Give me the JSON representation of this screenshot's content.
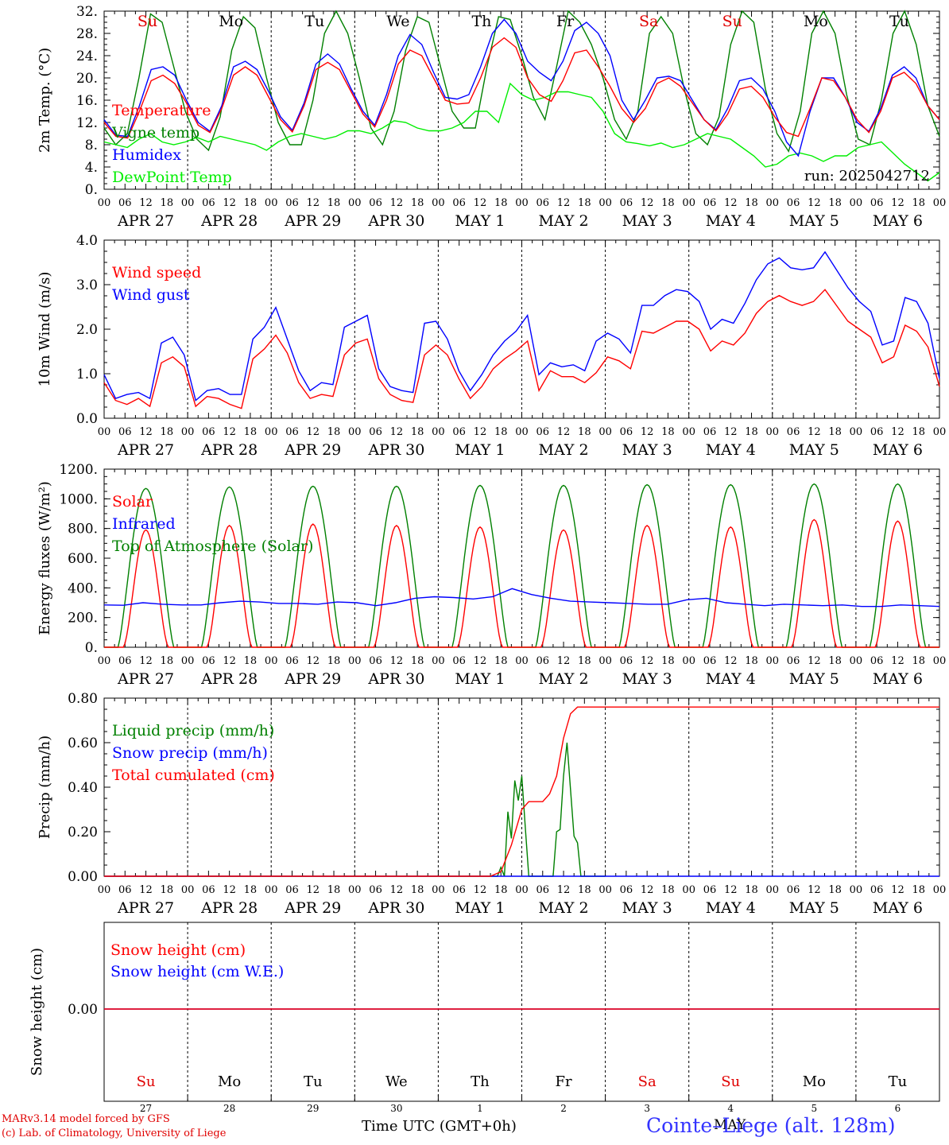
{
  "run_label": "run: 2025042712",
  "day_names": [
    "Su",
    "Mo",
    "Tu",
    "We",
    "Th",
    "Fr",
    "Sa",
    "Su",
    "Mo",
    "Tu"
  ],
  "day_name_colors": [
    "#e00000",
    "#000000",
    "#000000",
    "#000000",
    "#000000",
    "#000000",
    "#e00000",
    "#e00000",
    "#000000",
    "#000000"
  ],
  "date_labels": [
    "APR 27",
    "APR 28",
    "APR 29",
    "APR 30",
    "MAY  1",
    "MAY  2",
    "MAY  3",
    "MAY  4",
    "MAY  5",
    "MAY  6"
  ],
  "hour_labels": [
    "00",
    "06",
    "12",
    "18"
  ],
  "final_hour_label": "00",
  "day_numbers": [
    "27",
    "28",
    "29",
    "30",
    "1",
    "2",
    "3",
    "4",
    "5",
    "6"
  ],
  "month_label": "MAY",
  "xlabel": "Time UTC (GMT+0h)",
  "credit_lines": [
    "MARv3.14 model forced by GFS",
    "(c) Lab. of Climatology, University of Liege"
  ],
  "station": "Cointe–Liege (alt. 128m)",
  "colors": {
    "red": "#ff0000",
    "blue": "#0000ff",
    "dkgreen": "#008000",
    "ltgreen": "#00ee00"
  },
  "chart_data": [
    {
      "type": "line",
      "ylabel": "2m Temp. (°C)",
      "ylim": [
        0,
        32
      ],
      "yticks": [
        "0.",
        "4.",
        "8.",
        "12.",
        "16.",
        "20.",
        "24.",
        "28.",
        "32."
      ],
      "series": [
        {
          "name": "Temperature",
          "color": "#ff0000",
          "values": [
            12,
            9.5,
            9.2,
            14,
            19.5,
            20.5,
            19,
            15.5,
            11.5,
            10.2,
            14.5,
            20.5,
            22,
            20.5,
            16.5,
            12.5,
            10.3,
            15,
            21.5,
            22.8,
            21.5,
            17.5,
            13.5,
            11.2,
            16,
            22.5,
            25,
            24,
            20,
            16,
            15.3,
            15.5,
            20,
            25.5,
            27.2,
            25.5,
            20,
            17,
            15.8,
            19.5,
            24.5,
            25,
            22,
            18.5,
            14.5,
            12,
            14.5,
            19,
            20,
            18.5,
            15.5,
            12.5,
            10.5,
            13.5,
            18,
            18.5,
            16.5,
            13,
            10.2,
            9.5,
            14.5,
            20,
            19.5,
            16.5,
            12.5,
            10.2,
            14,
            20,
            21,
            19,
            15,
            12.5
          ]
        },
        {
          "name": "Vigne temp",
          "color": "#008000",
          "values": [
            11,
            8,
            10,
            20,
            31.5,
            30,
            22,
            14,
            9,
            7,
            13,
            25,
            31,
            29,
            20,
            12,
            8,
            8,
            16,
            28,
            32,
            28,
            20,
            11,
            8,
            14,
            25,
            31,
            30,
            22,
            14,
            11,
            11,
            22,
            31,
            30.5,
            24,
            16.5,
            12.5,
            22,
            32,
            30,
            26,
            20,
            12.5,
            9,
            14,
            28,
            31,
            28,
            18,
            10,
            8,
            13,
            26,
            32,
            30,
            18,
            10,
            6.8,
            14,
            28,
            32,
            28,
            17,
            9,
            8,
            16,
            28,
            32,
            26,
            15,
            9.5
          ]
        },
        {
          "name": "Humidex",
          "color": "#0000ff",
          "values": [
            12.5,
            9.7,
            9.5,
            15,
            21.5,
            22,
            20.5,
            16,
            12,
            10.4,
            15,
            22,
            23,
            21.5,
            17.5,
            13,
            10.6,
            15.5,
            22.5,
            24.3,
            22.5,
            18,
            14,
            11.5,
            17,
            24,
            27.8,
            26,
            21,
            16.5,
            16.2,
            17,
            22,
            28,
            30.5,
            28,
            23,
            21,
            19.5,
            23,
            28.5,
            30,
            28,
            24,
            16,
            12.5,
            16,
            20,
            20.3,
            19.5,
            16,
            12.5,
            10.7,
            14.5,
            19.5,
            20,
            18,
            14,
            8.5,
            6,
            14,
            20,
            20,
            16.5,
            12,
            10.4,
            14.5,
            20.5,
            22,
            20,
            15,
            12.5
          ]
        },
        {
          "name": "DewPoint Temp",
          "color": "#00ee00",
          "values": [
            8.5,
            8,
            7.5,
            9,
            10,
            8.5,
            8,
            8.5,
            9.3,
            8.5,
            9.5,
            9,
            8.5,
            8,
            7,
            8.5,
            9.5,
            10,
            9.5,
            9,
            9.5,
            10.5,
            10.5,
            10,
            11,
            12.3,
            12,
            11,
            10.5,
            10.5,
            11,
            12,
            14,
            14,
            12,
            19,
            17,
            16,
            16.5,
            17.5,
            17.5,
            17,
            16.5,
            14,
            10,
            8.5,
            8.2,
            7.8,
            8.3,
            7.5,
            8,
            9,
            10,
            9.5,
            9,
            7.5,
            6,
            4,
            4.5,
            6,
            6.5,
            6,
            5,
            6,
            6,
            7.5,
            8,
            8.5,
            6.5,
            4.5,
            3,
            1.5,
            3
          ]
        }
      ]
    },
    {
      "type": "line",
      "ylabel": "10m Wind (m/s)",
      "ylim": [
        0,
        4.5
      ],
      "yticks": [
        "0.0",
        "1.0",
        "2.0",
        "3.0",
        "4.0"
      ],
      "series": [
        {
          "name": "Wind speed",
          "color": "#ff0000",
          "values": [
            0.9,
            0.45,
            0.35,
            0.5,
            0.3,
            1.4,
            1.55,
            1.3,
            0.3,
            0.55,
            0.5,
            0.35,
            0.25,
            1.5,
            1.75,
            2.1,
            1.65,
            0.9,
            0.5,
            0.6,
            0.55,
            1.6,
            1.9,
            2.0,
            1.0,
            0.6,
            0.45,
            0.4,
            1.6,
            1.85,
            1.6,
            1.0,
            0.5,
            0.8,
            1.25,
            1.5,
            1.7,
            1.95,
            0.7,
            1.2,
            1.05,
            1.05,
            0.9,
            1.15,
            1.55,
            1.45,
            1.25,
            2.2,
            2.15,
            2.3,
            2.45,
            2.45,
            2.25,
            1.7,
            1.95,
            1.85,
            2.15,
            2.65,
            2.95,
            3.1,
            2.95,
            2.85,
            2.95,
            3.25,
            2.85,
            2.45,
            2.25,
            2.05,
            1.4,
            1.55,
            2.35,
            2.2,
            1.8,
            0.8
          ]
        },
        {
          "name": "Wind gust",
          "color": "#0000ff",
          "values": [
            1.1,
            0.5,
            0.6,
            0.65,
            0.5,
            1.9,
            2.05,
            1.6,
            0.45,
            0.7,
            0.75,
            0.6,
            0.6,
            2.0,
            2.3,
            2.8,
            2.0,
            1.2,
            0.7,
            0.9,
            0.85,
            2.3,
            2.45,
            2.6,
            1.25,
            0.8,
            0.7,
            0.65,
            2.4,
            2.45,
            2.0,
            1.2,
            0.7,
            1.1,
            1.6,
            1.95,
            2.2,
            2.6,
            1.1,
            1.4,
            1.3,
            1.35,
            1.2,
            1.95,
            2.15,
            2.0,
            1.65,
            2.85,
            2.85,
            3.1,
            3.25,
            3.2,
            2.95,
            2.25,
            2.5,
            2.4,
            2.9,
            3.5,
            3.9,
            4.05,
            3.8,
            3.75,
            3.8,
            4.2,
            3.75,
            3.3,
            2.95,
            2.7,
            1.85,
            1.95,
            3.05,
            2.95,
            2.4,
            1.0
          ]
        }
      ]
    },
    {
      "type": "line",
      "ylabel": "Energy fluxes (W/m²)",
      "ylim": [
        0,
        1200
      ],
      "yticks": [
        "0.",
        "200.",
        "400.",
        "600.",
        "800.",
        "1000.",
        "1200."
      ],
      "series": [
        {
          "name": "Solar",
          "color": "#ff0000",
          "peaks": [
            790,
            820,
            830,
            820,
            810,
            790,
            820,
            810,
            860,
            850
          ]
        },
        {
          "name": "Infrared",
          "color": "#0000ff",
          "values": [
            285,
            283,
            300,
            290,
            285,
            285,
            300,
            310,
            305,
            295,
            295,
            290,
            305,
            300,
            280,
            300,
            330,
            340,
            335,
            325,
            340,
            395,
            355,
            330,
            310,
            305,
            300,
            295,
            290,
            290,
            320,
            330,
            300,
            290,
            280,
            290,
            285,
            280,
            285,
            275,
            275,
            285,
            280,
            275
          ]
        },
        {
          "name": "Top of Atmosphere (Solar)",
          "color": "#008000",
          "peaks": [
            1070,
            1080,
            1085,
            1085,
            1090,
            1090,
            1095,
            1095,
            1100,
            1100
          ]
        }
      ]
    },
    {
      "type": "line",
      "ylabel": "Precip (mm/h)",
      "ylim": [
        0,
        0.8
      ],
      "yticks": [
        "0.00",
        "0.20",
        "0.40",
        "0.60",
        "0.80"
      ],
      "series": [
        {
          "name": "Liquid precip (mm/h)",
          "color": "#008000",
          "points": [
            [
              0,
              0
            ],
            [
              113,
              0
            ],
            [
              114,
              0.04
            ],
            [
              115,
              0.0
            ],
            [
              116,
              0.29
            ],
            [
              117,
              0.17
            ],
            [
              118,
              0.43
            ],
            [
              119,
              0.34
            ],
            [
              120,
              0.45
            ],
            [
              121,
              0.22
            ],
            [
              122,
              0.0
            ],
            [
              123,
              0.0
            ],
            [
              124,
              0
            ],
            [
              125,
              0
            ],
            [
              126,
              0
            ],
            [
              127,
              0
            ],
            [
              128,
              0.0
            ],
            [
              129,
              0.0
            ],
            [
              130,
              0.2
            ],
            [
              131,
              0.21
            ],
            [
              132,
              0.45
            ],
            [
              133,
              0.6
            ],
            [
              134,
              0.39
            ],
            [
              135,
              0.18
            ],
            [
              136,
              0.15
            ],
            [
              137,
              0.0
            ],
            [
              144,
              0
            ]
          ]
        },
        {
          "name": "Snow precip (mm/h)",
          "color": "#0000ff",
          "points": [
            [
              0,
              0
            ],
            [
              240,
              0
            ]
          ]
        },
        {
          "name": "Total cumulated (cm)",
          "color": "#ff0000",
          "points": [
            [
              0,
              0
            ],
            [
              111,
              0
            ],
            [
              114,
              0.02
            ],
            [
              117,
              0.14
            ],
            [
              120,
              0.3
            ],
            [
              122,
              0.335
            ],
            [
              126,
              0.335
            ],
            [
              128,
              0.37
            ],
            [
              130,
              0.45
            ],
            [
              132,
              0.62
            ],
            [
              134,
              0.73
            ],
            [
              136,
              0.76
            ],
            [
              240,
              0.76
            ]
          ]
        }
      ]
    },
    {
      "type": "line",
      "ylabel": "Snow height (cm)",
      "yticks": [
        "0.00"
      ],
      "series": [
        {
          "name": "Snow height (cm)",
          "color": "#ff0000",
          "values": [
            0,
            0
          ]
        },
        {
          "name": "Snow height (cm W.E.)",
          "color": "#0000ff",
          "values": [
            0,
            0
          ]
        }
      ]
    }
  ]
}
